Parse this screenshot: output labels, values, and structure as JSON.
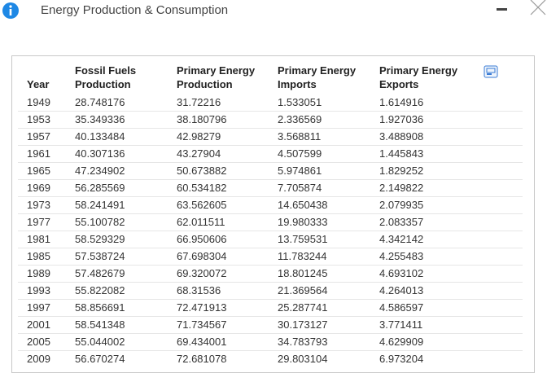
{
  "dialog": {
    "title": "Energy Production & Consumption",
    "table": {
      "headers": [
        [
          "Year"
        ],
        [
          "Fossil Fuels",
          "Production"
        ],
        [
          "Primary Energy",
          "Production"
        ],
        [
          "Primary Energy",
          "Imports"
        ],
        [
          "Primary Energy",
          "Exports"
        ]
      ],
      "rows": [
        [
          "1949",
          "28.748176",
          "31.72216",
          "1.533051",
          "1.614916"
        ],
        [
          "1953",
          "35.349336",
          "38.180796",
          "2.336569",
          "1.927036"
        ],
        [
          "1957",
          "40.133484",
          "42.98279",
          "3.568811",
          "3.488908"
        ],
        [
          "1961",
          "40.307136",
          "43.27904",
          "4.507599",
          "1.445843"
        ],
        [
          "1965",
          "47.234902",
          "50.673882",
          "5.974861",
          "1.829252"
        ],
        [
          "1969",
          "56.285569",
          "60.534182",
          "7.705874",
          "2.149822"
        ],
        [
          "1973",
          "58.241491",
          "63.562605",
          "14.650438",
          "2.079935"
        ],
        [
          "1977",
          "55.100782",
          "62.011511",
          "19.980333",
          "2.083357"
        ],
        [
          "1981",
          "58.529329",
          "66.950606",
          "13.759531",
          "4.342142"
        ],
        [
          "1985",
          "57.538724",
          "67.698304",
          "11.783244",
          "4.255483"
        ],
        [
          "1989",
          "57.482679",
          "69.320072",
          "18.801245",
          "4.693102"
        ],
        [
          "1993",
          "55.822082",
          "68.31536",
          "21.369564",
          "4.264013"
        ],
        [
          "1997",
          "58.856691",
          "72.471913",
          "25.287741",
          "4.586597"
        ],
        [
          "2001",
          "58.541348",
          "71.734567",
          "30.173127",
          "3.771411"
        ],
        [
          "2005",
          "55.044002",
          "69.434001",
          "34.783793",
          "4.629909"
        ],
        [
          "2009",
          "56.670274",
          "72.681078",
          "29.803104",
          "6.973204"
        ]
      ]
    }
  }
}
